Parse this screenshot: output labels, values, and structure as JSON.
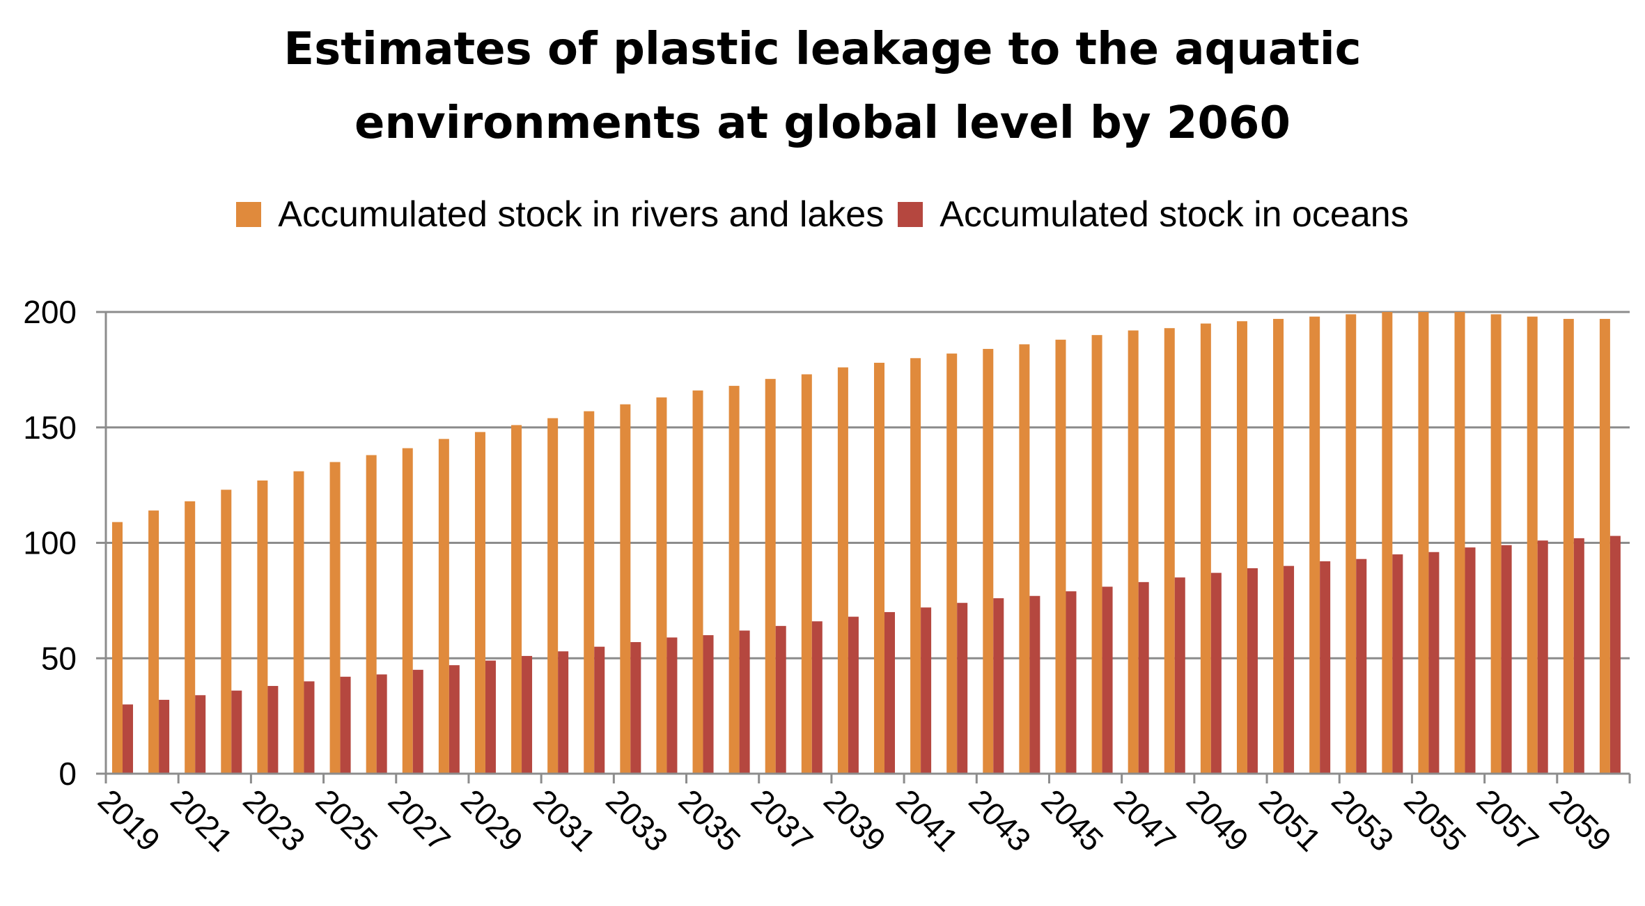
{
  "chart_data": {
    "type": "bar",
    "title_lines": [
      "Estimates of plastic leakage to the aquatic",
      "environments at global level by 2060"
    ],
    "xlabel": "",
    "ylabel": "",
    "ylim": [
      0,
      200
    ],
    "yticks": [
      "0",
      "50",
      "100",
      "150",
      "200"
    ],
    "grid": true,
    "legend_position": "top-center",
    "categories": [
      "2019",
      "2020",
      "2021",
      "2022",
      "2023",
      "2024",
      "2025",
      "2026",
      "2027",
      "2028",
      "2029",
      "2030",
      "2031",
      "2032",
      "2033",
      "2034",
      "2035",
      "2036",
      "2037",
      "2038",
      "2039",
      "2040",
      "2041",
      "2042",
      "2043",
      "2044",
      "2045",
      "2046",
      "2047",
      "2048",
      "2049",
      "2050",
      "2051",
      "2052",
      "2053",
      "2054",
      "2055",
      "2056",
      "2057",
      "2058",
      "2059",
      "2060"
    ],
    "tick_labels": [
      "2019",
      "2021",
      "2023",
      "2025",
      "2027",
      "2029",
      "2031",
      "2033",
      "2035",
      "2037",
      "2039",
      "2041",
      "2043",
      "2045",
      "2047",
      "2049",
      "2051",
      "2053",
      "2055",
      "2057",
      "2059"
    ],
    "series": [
      {
        "name": "Accumulated stock in rivers and lakes",
        "color": "#E08A3C",
        "values": [
          109,
          114,
          118,
          123,
          127,
          131,
          135,
          138,
          141,
          145,
          148,
          151,
          154,
          157,
          160,
          163,
          166,
          168,
          171,
          173,
          176,
          178,
          180,
          182,
          184,
          186,
          188,
          190,
          192,
          193,
          195,
          196,
          197,
          198,
          199,
          200,
          200,
          200,
          199,
          198,
          197,
          197
        ]
      },
      {
        "name": "Accumulated stock in oceans",
        "color": "#B5473F",
        "values": [
          30,
          32,
          34,
          36,
          38,
          40,
          42,
          43,
          45,
          47,
          49,
          51,
          53,
          55,
          57,
          59,
          60,
          62,
          64,
          66,
          68,
          70,
          72,
          74,
          76,
          77,
          79,
          81,
          83,
          85,
          87,
          89,
          90,
          92,
          93,
          95,
          96,
          98,
          99,
          101,
          102,
          103
        ]
      }
    ]
  }
}
